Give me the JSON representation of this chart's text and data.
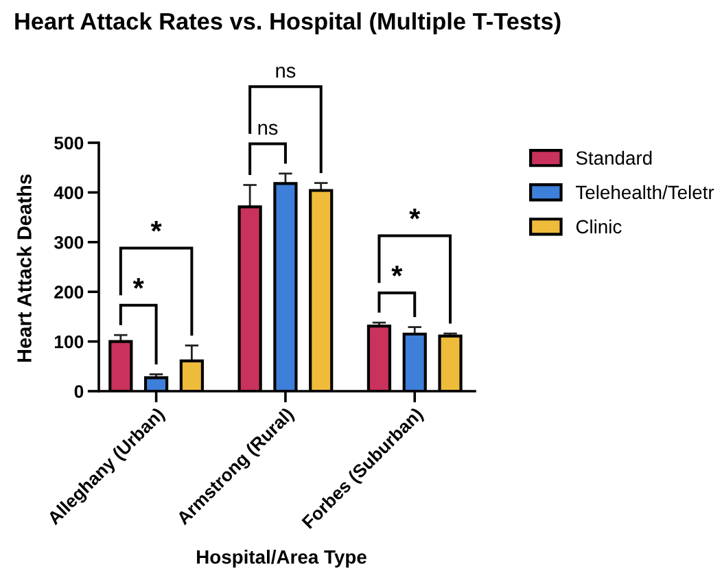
{
  "chart_data": {
    "type": "bar",
    "title": "Heart Attack Rates vs. Hospital (Multiple T-Tests)",
    "xlabel": "Hospital/Area Type",
    "ylabel": "Heart Attack Deaths",
    "categories": [
      "Alleghany (Urban)",
      "Armstrong (Rural)",
      "Forbes (Suburban)"
    ],
    "series": [
      {
        "name": "Standard",
        "color": "#c9325c",
        "values": [
          100,
          371,
          131
        ],
        "errors": [
          [
            100,
            113
          ],
          [
            371,
            415
          ],
          [
            131,
            138
          ]
        ]
      },
      {
        "name": "Telehealth/Teletr",
        "color": "#3d7fd9",
        "values": [
          27,
          418,
          115
        ],
        "errors": [
          [
            27,
            34
          ],
          [
            418,
            438
          ],
          [
            115,
            129
          ]
        ]
      },
      {
        "name": "Clinic",
        "color": "#efbb3b",
        "values": [
          61,
          404,
          111
        ],
        "errors": [
          [
            61,
            92
          ],
          [
            404,
            419
          ],
          [
            111,
            116
          ]
        ]
      }
    ],
    "ylim": [
      0,
      500
    ],
    "yticks": [
      0,
      100,
      200,
      300,
      400,
      500
    ],
    "grid": false,
    "legend": "top right",
    "annotations": [
      "*",
      "*",
      "ns",
      "ns",
      "*",
      "*"
    ]
  }
}
